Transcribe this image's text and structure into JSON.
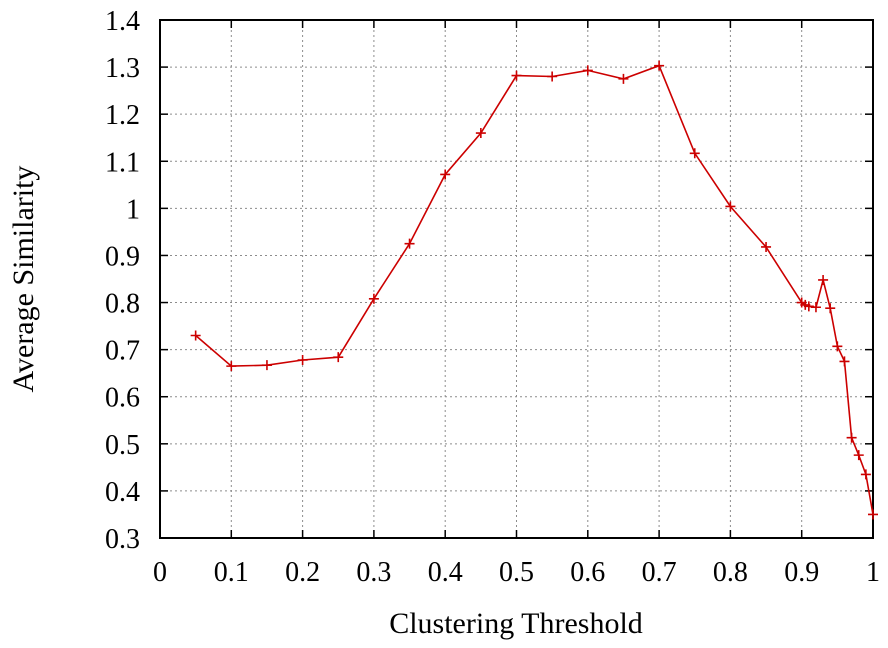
{
  "chart_data": {
    "type": "line",
    "title": "",
    "xlabel": "Clustering Threshold",
    "ylabel": "Average Similarity",
    "xlim": [
      0,
      1
    ],
    "ylim": [
      0.3,
      1.4
    ],
    "x_ticks": [
      "0",
      "0.1",
      "0.2",
      "0.3",
      "0.4",
      "0.5",
      "0.6",
      "0.7",
      "0.8",
      "0.9",
      "1"
    ],
    "y_ticks": [
      "0.3",
      "0.4",
      "0.5",
      "0.6",
      "0.7",
      "0.8",
      "0.9",
      "1",
      "1.1",
      "1.2",
      "1.3",
      "1.4"
    ],
    "grid": true,
    "legend": "none",
    "series": [
      {
        "color": "#cc0000",
        "marker": "plus",
        "x": [
          0.05,
          0.1,
          0.15,
          0.2,
          0.25,
          0.3,
          0.35,
          0.4,
          0.45,
          0.5,
          0.55,
          0.6,
          0.65,
          0.7,
          0.75,
          0.8,
          0.85,
          0.9,
          0.905,
          0.91,
          0.92,
          0.93,
          0.94,
          0.95,
          0.96,
          0.97,
          0.98,
          0.99,
          1.0
        ],
        "y": [
          0.73,
          0.665,
          0.667,
          0.678,
          0.684,
          0.808,
          0.925,
          1.072,
          1.16,
          1.282,
          1.28,
          1.293,
          1.275,
          1.303,
          1.117,
          1.004,
          0.918,
          0.8,
          0.795,
          0.792,
          0.79,
          0.848,
          0.788,
          0.707,
          0.675,
          0.513,
          0.476,
          0.435,
          0.35
        ]
      }
    ]
  }
}
